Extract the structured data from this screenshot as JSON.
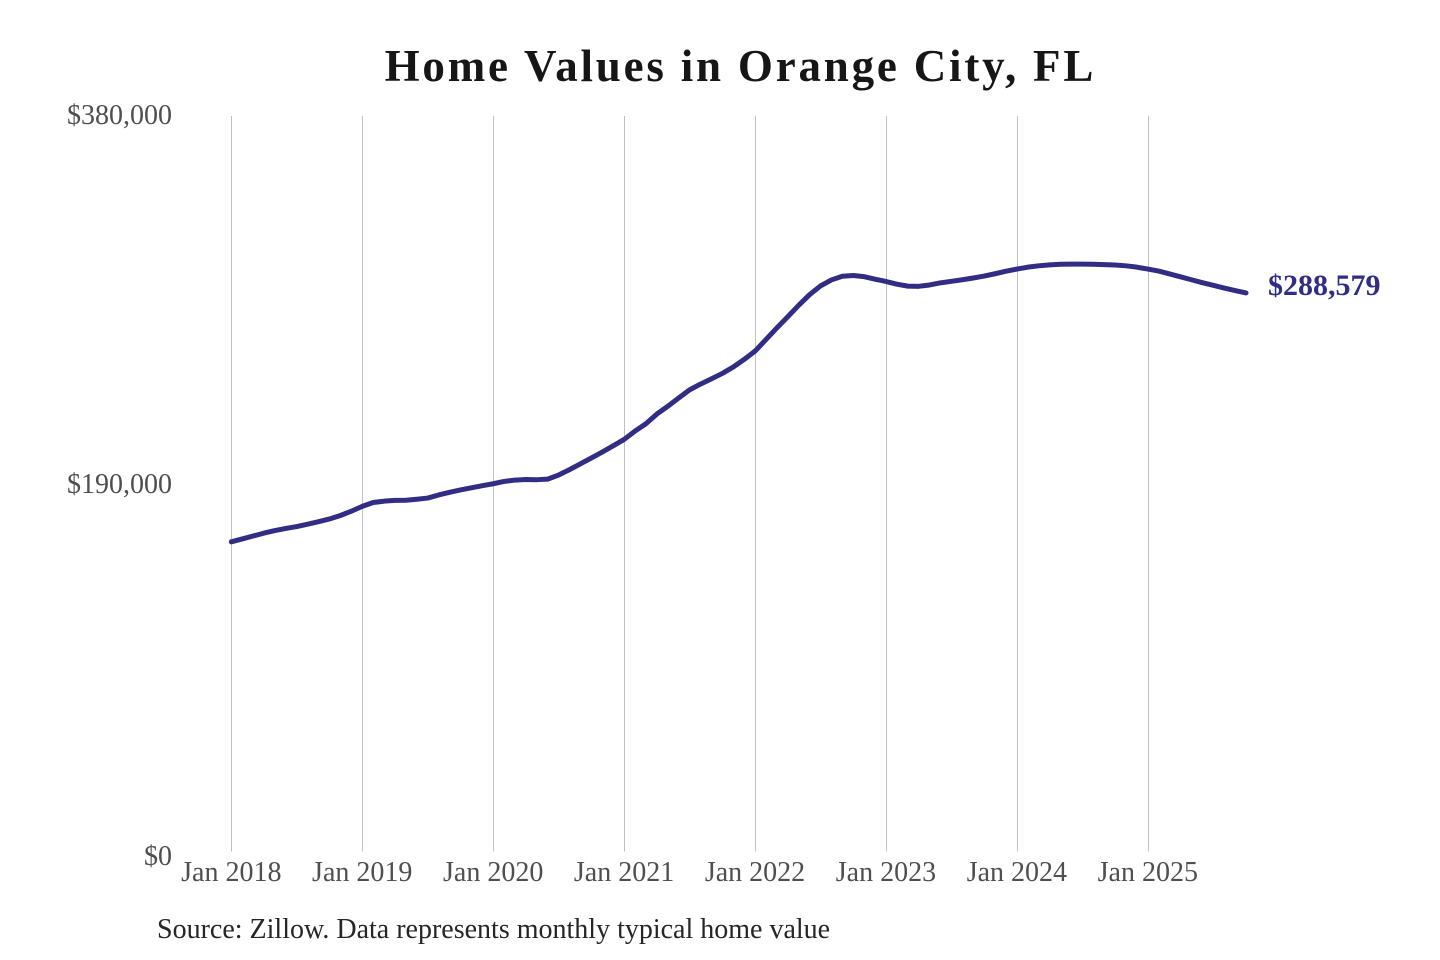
{
  "chart": {
    "title": "Home Values in Orange City, FL",
    "source_note": "Source: Zillow. Data represents monthly typical home value"
  },
  "chart_data": {
    "type": "line",
    "title": "Home Values in Orange City, FL",
    "xlabel": "",
    "ylabel": "",
    "ylim": [
      0,
      380000
    ],
    "grid": "vertical-only",
    "y_tick_values": [
      380000,
      190000,
      0
    ],
    "y_tick_labels": [
      "$380,000",
      "$190,000",
      "$0"
    ],
    "x_tick_labels": [
      "Jan 2018",
      "Jan 2019",
      "Jan 2020",
      "Jan 2021",
      "Jan 2022",
      "Jan 2023",
      "Jan 2024",
      "Jan 2025"
    ],
    "end_label": "$288,579",
    "last_value": 288579,
    "series_name": "Typical home value",
    "months": [
      "2018-01",
      "2018-02",
      "2018-03",
      "2018-04",
      "2018-05",
      "2018-06",
      "2018-07",
      "2018-08",
      "2018-09",
      "2018-10",
      "2018-11",
      "2018-12",
      "2019-01",
      "2019-02",
      "2019-03",
      "2019-04",
      "2019-05",
      "2019-06",
      "2019-07",
      "2019-08",
      "2019-09",
      "2019-10",
      "2019-11",
      "2019-12",
      "2020-01",
      "2020-02",
      "2020-03",
      "2020-04",
      "2020-05",
      "2020-06",
      "2020-07",
      "2020-08",
      "2020-09",
      "2020-10",
      "2020-11",
      "2020-12",
      "2021-01",
      "2021-02",
      "2021-03",
      "2021-04",
      "2021-05",
      "2021-06",
      "2021-07",
      "2021-08",
      "2021-09",
      "2021-10",
      "2021-11",
      "2021-12",
      "2022-01",
      "2022-02",
      "2022-03",
      "2022-04",
      "2022-05",
      "2022-06",
      "2022-07",
      "2022-08",
      "2022-09",
      "2022-10",
      "2022-11",
      "2022-12",
      "2023-01",
      "2023-02",
      "2023-03",
      "2023-04",
      "2023-05",
      "2023-06",
      "2023-07",
      "2023-08",
      "2023-09",
      "2023-10",
      "2023-11",
      "2023-12",
      "2024-01",
      "2024-02",
      "2024-03",
      "2024-04",
      "2024-05",
      "2024-06",
      "2024-07",
      "2024-08",
      "2024-09",
      "2024-10",
      "2024-11",
      "2024-12",
      "2025-01",
      "2025-02",
      "2025-03",
      "2025-04",
      "2025-05",
      "2025-06",
      "2025-07",
      "2025-08",
      "2025-09",
      "2025-10"
    ],
    "values": [
      160000,
      161500,
      163000,
      164500,
      165800,
      166900,
      167900,
      169100,
      170400,
      171800,
      173600,
      175800,
      178300,
      180300,
      181000,
      181400,
      181500,
      182000,
      182600,
      184200,
      185600,
      186800,
      187900,
      189000,
      190000,
      191200,
      191900,
      192200,
      192100,
      192400,
      194500,
      197300,
      200300,
      203300,
      206400,
      209600,
      212900,
      217200,
      221000,
      226000,
      230000,
      234300,
      238500,
      241500,
      244200,
      247000,
      250300,
      254200,
      258500,
      264500,
      270500,
      276300,
      282200,
      287700,
      292200,
      295300,
      297200,
      297600,
      297000,
      295700,
      294500,
      293100,
      292100,
      292000,
      292700,
      293800,
      294600,
      295400,
      296300,
      297300,
      298500,
      299800,
      300900,
      301900,
      302600,
      303100,
      303400,
      303500,
      303500,
      303400,
      303200,
      303000,
      302600,
      301900,
      300900,
      299900,
      298400,
      296900,
      295400,
      293900,
      292500,
      291100,
      289800,
      288579
    ],
    "colors": {
      "line": "#312d84",
      "end_label": "#312d84",
      "gridline": "#c0c0c0",
      "tick_text": "#4f4f4f",
      "title_text": "#161616",
      "source_text": "#262626",
      "background": "#ffffff"
    }
  }
}
